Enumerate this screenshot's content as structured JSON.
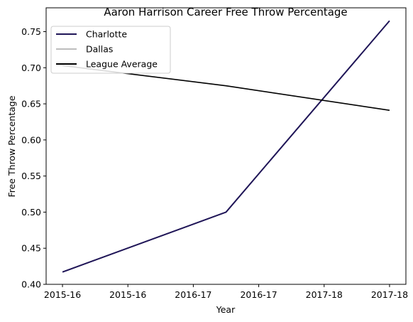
{
  "chart_data": {
    "type": "line",
    "title": "Aaron Harrison Career Free Throw Percentage",
    "xlabel": "Year",
    "ylabel": "Free Throw Percentage",
    "x_tick_labels": [
      "2015-16",
      "2015-16",
      "2016-17",
      "2016-17",
      "2017-18",
      "2017-18"
    ],
    "xlim": [
      -0.25,
      5.25
    ],
    "ylim": [
      0.4,
      0.783
    ],
    "y_ticks": [
      "0.40",
      "0.45",
      "0.50",
      "0.55",
      "0.60",
      "0.65",
      "0.70",
      "0.75"
    ],
    "grid": false,
    "legend": {
      "placement": "top-left"
    },
    "series": [
      {
        "name": "Charlotte",
        "color": "#1f1557",
        "points": [
          {
            "x": 0,
            "y": 0.417
          },
          {
            "x": 2.5,
            "y": 0.5
          },
          {
            "x": 5,
            "y": 0.765
          }
        ]
      },
      {
        "name": "Dallas",
        "color": "#bdbdbd",
        "points": []
      },
      {
        "name": "League Average",
        "color": "#000000",
        "points": [
          {
            "x": 0,
            "y": 0.703
          },
          {
            "x": 2.5,
            "y": 0.675
          },
          {
            "x": 5,
            "y": 0.641
          }
        ]
      }
    ]
  }
}
